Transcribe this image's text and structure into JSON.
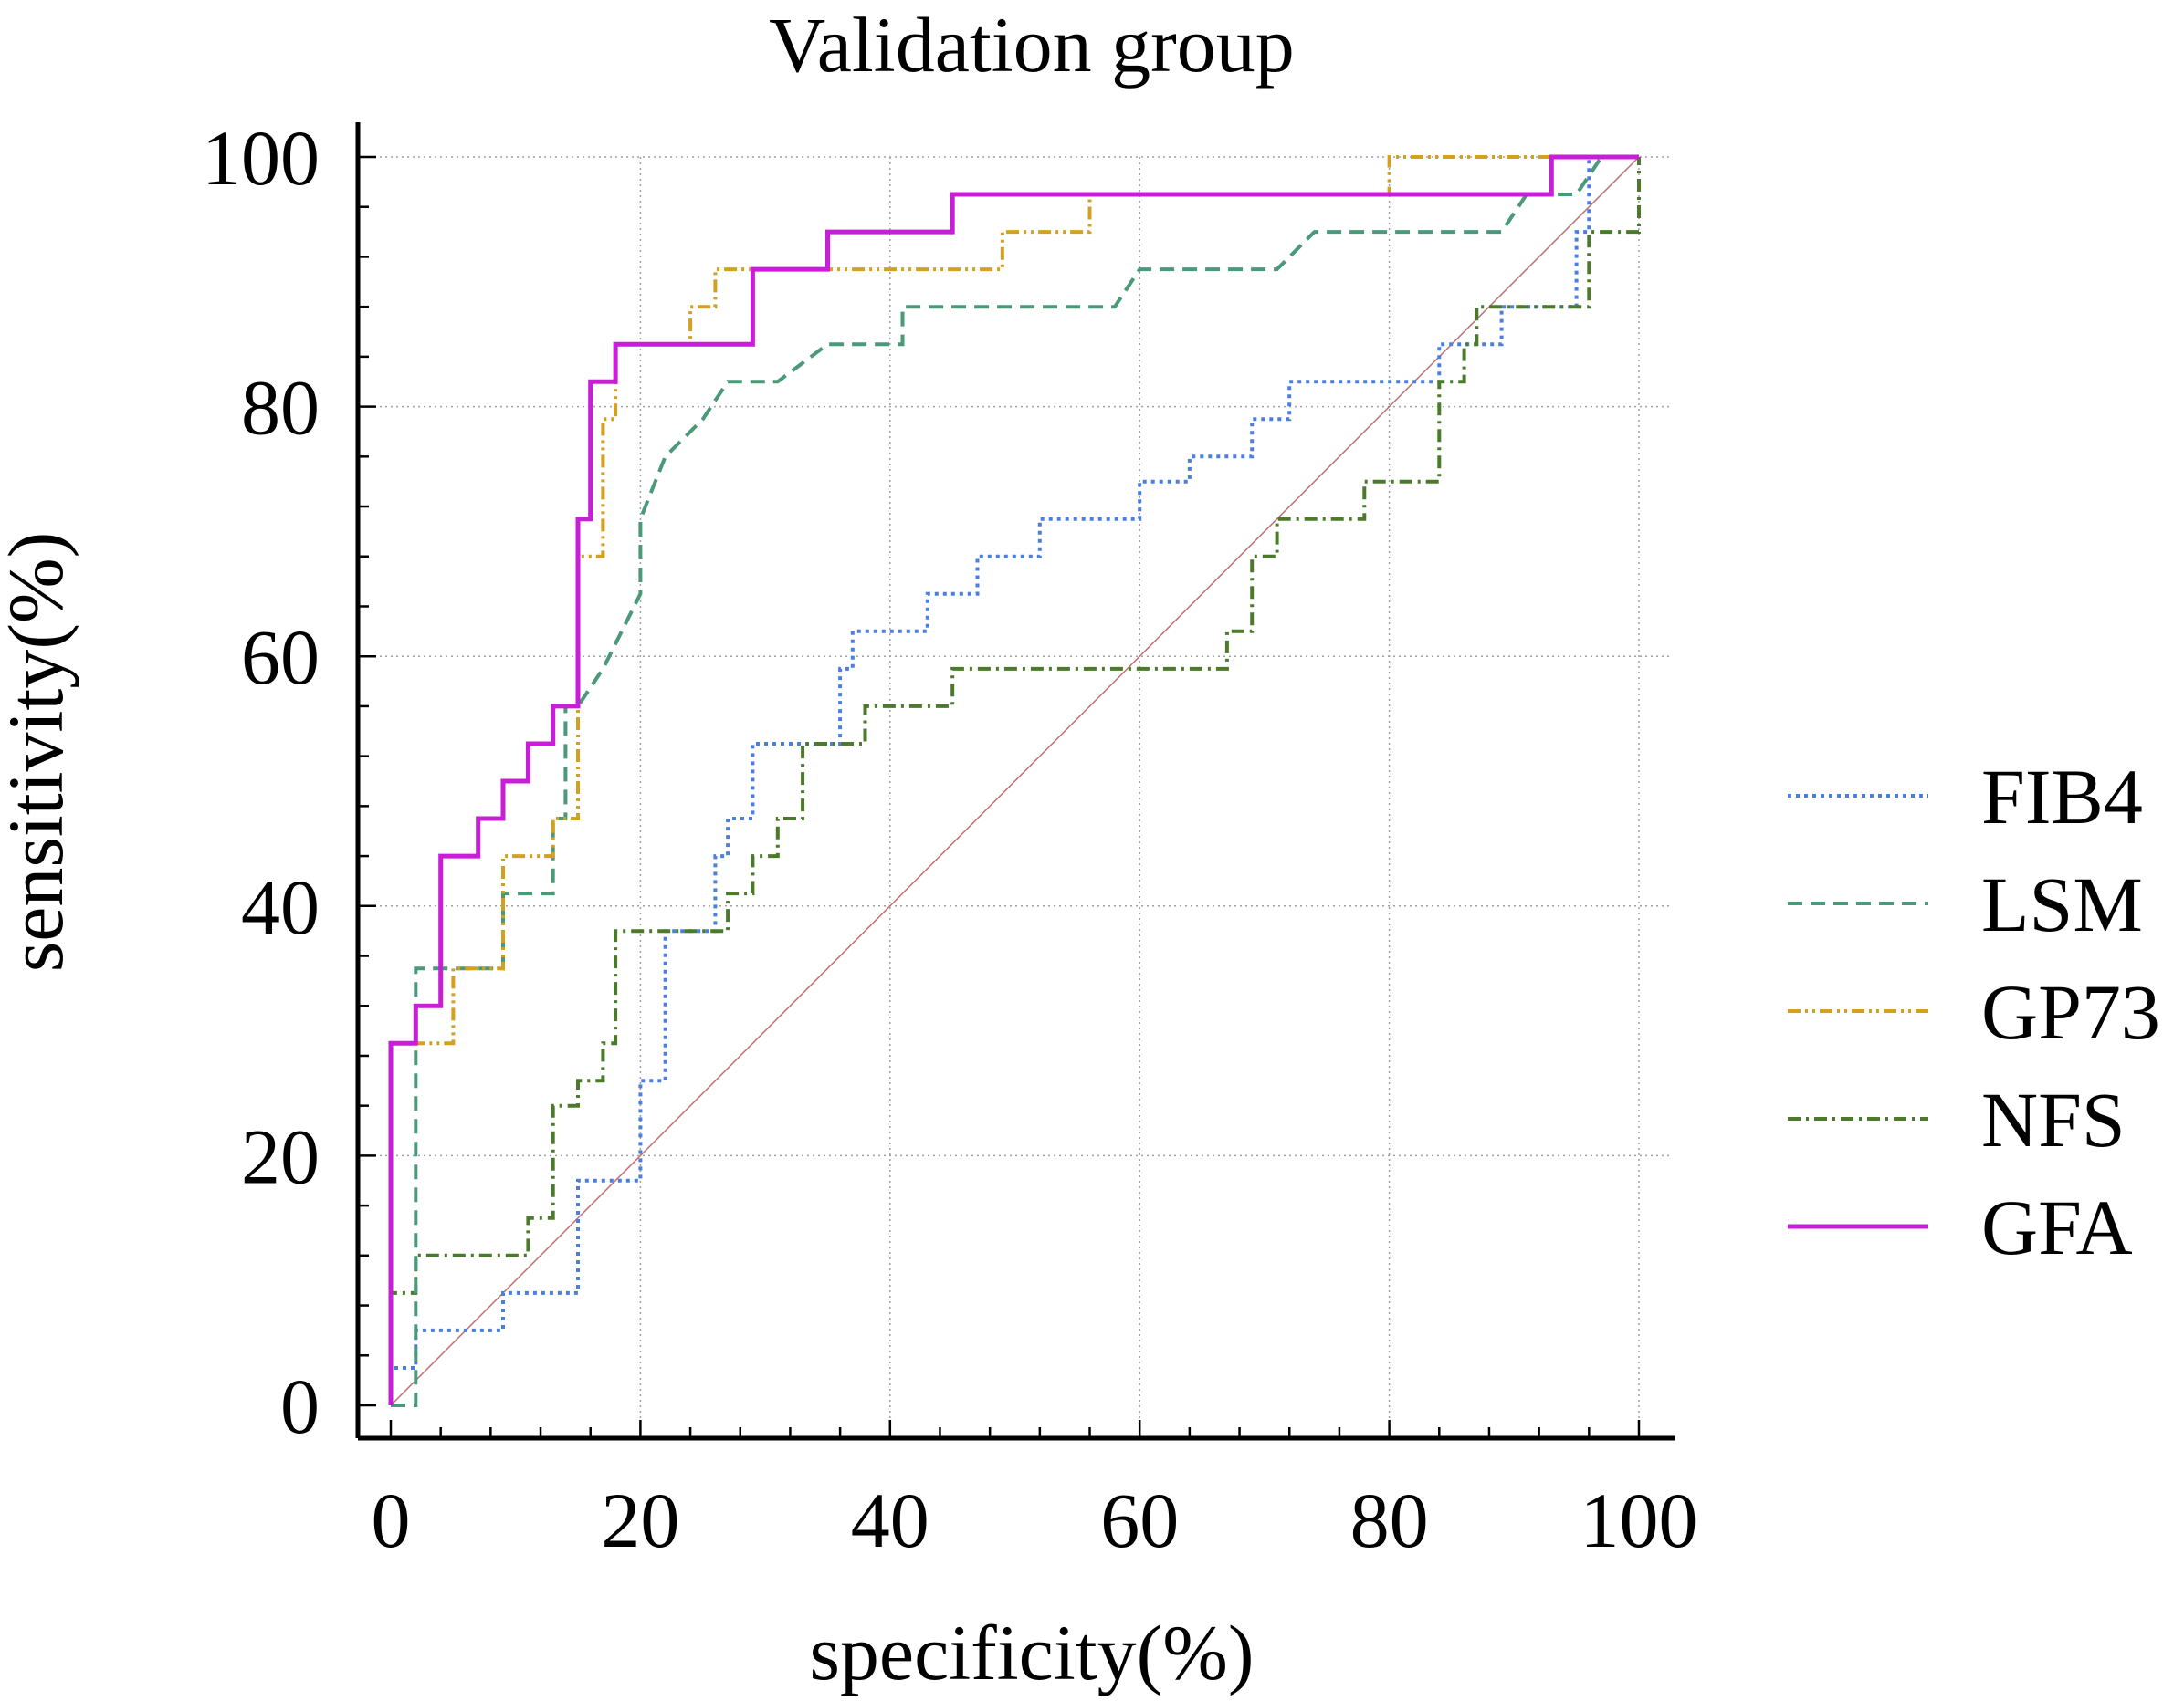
{
  "chart_data": {
    "type": "line",
    "title": "Validation group",
    "xlabel": "specificity(%)",
    "ylabel": "sensitivity(%)",
    "xlim": [
      0,
      100
    ],
    "ylim": [
      0,
      100
    ],
    "xticks": [
      "0",
      "20",
      "40",
      "60",
      "80",
      "100"
    ],
    "yticks": [
      "0",
      "20",
      "40",
      "60",
      "80",
      "100"
    ],
    "grid": true,
    "legend_position": "right",
    "reference_line": {
      "name": "diagonal",
      "color": "#c07070"
    },
    "series": [
      {
        "name": "FIB4",
        "color": "#4a7fe0",
        "dash": "dotted",
        "points": [
          [
            0,
            0
          ],
          [
            0,
            3
          ],
          [
            2,
            3
          ],
          [
            2,
            6
          ],
          [
            9,
            6
          ],
          [
            9,
            9
          ],
          [
            15,
            9
          ],
          [
            15,
            18
          ],
          [
            20,
            18
          ],
          [
            20,
            26
          ],
          [
            22,
            26
          ],
          [
            22,
            38
          ],
          [
            26,
            38
          ],
          [
            26,
            44
          ],
          [
            27,
            44
          ],
          [
            27,
            47
          ],
          [
            29,
            47
          ],
          [
            29,
            53
          ],
          [
            36,
            53
          ],
          [
            36,
            59
          ],
          [
            37,
            59
          ],
          [
            37,
            62
          ],
          [
            43,
            62
          ],
          [
            43,
            65
          ],
          [
            47,
            65
          ],
          [
            47,
            68
          ],
          [
            52,
            68
          ],
          [
            52,
            71
          ],
          [
            60,
            71
          ],
          [
            60,
            74
          ],
          [
            64,
            74
          ],
          [
            64,
            76
          ],
          [
            69,
            76
          ],
          [
            69,
            79
          ],
          [
            72,
            79
          ],
          [
            72,
            82
          ],
          [
            84,
            82
          ],
          [
            84,
            85
          ],
          [
            89,
            85
          ],
          [
            89,
            88
          ],
          [
            95,
            88
          ],
          [
            95,
            94
          ],
          [
            96,
            94
          ],
          [
            96,
            100
          ],
          [
            100,
            100
          ]
        ]
      },
      {
        "name": "LSM",
        "color": "#4a9a7a",
        "dash": "dashed",
        "points": [
          [
            0,
            0
          ],
          [
            2,
            0
          ],
          [
            2,
            29
          ],
          [
            2,
            35
          ],
          [
            9,
            35
          ],
          [
            9,
            41
          ],
          [
            13,
            41
          ],
          [
            13,
            47
          ],
          [
            14,
            47
          ],
          [
            14,
            56
          ],
          [
            15,
            56
          ],
          [
            17,
            59
          ],
          [
            20,
            65
          ],
          [
            20,
            71
          ],
          [
            22,
            76
          ],
          [
            25,
            79
          ],
          [
            27,
            82
          ],
          [
            31,
            82
          ],
          [
            35,
            85
          ],
          [
            41,
            85
          ],
          [
            41,
            88
          ],
          [
            58,
            88
          ],
          [
            60,
            91
          ],
          [
            71,
            91
          ],
          [
            74,
            94
          ],
          [
            89,
            94
          ],
          [
            91,
            97
          ],
          [
            95,
            97
          ],
          [
            97,
            100
          ],
          [
            100,
            100
          ]
        ]
      },
      {
        "name": "GP73",
        "color": "#d4a020",
        "dash": "dashdotdot",
        "points": [
          [
            0,
            0
          ],
          [
            0,
            29
          ],
          [
            5,
            29
          ],
          [
            5,
            35
          ],
          [
            9,
            35
          ],
          [
            9,
            44
          ],
          [
            13,
            44
          ],
          [
            13,
            47
          ],
          [
            15,
            47
          ],
          [
            15,
            56
          ],
          [
            15,
            68
          ],
          [
            17,
            68
          ],
          [
            17,
            79
          ],
          [
            18,
            79
          ],
          [
            18,
            85
          ],
          [
            24,
            85
          ],
          [
            24,
            88
          ],
          [
            26,
            88
          ],
          [
            26,
            91
          ],
          [
            49,
            91
          ],
          [
            49,
            94
          ],
          [
            56,
            94
          ],
          [
            56,
            97
          ],
          [
            80,
            97
          ],
          [
            80,
            100
          ],
          [
            100,
            100
          ]
        ]
      },
      {
        "name": "NFS",
        "color": "#4a7a2a",
        "dash": "dashdot",
        "points": [
          [
            0,
            0
          ],
          [
            0,
            9
          ],
          [
            2,
            9
          ],
          [
            2,
            12
          ],
          [
            11,
            12
          ],
          [
            11,
            15
          ],
          [
            13,
            15
          ],
          [
            13,
            24
          ],
          [
            15,
            24
          ],
          [
            15,
            26
          ],
          [
            17,
            26
          ],
          [
            17,
            29
          ],
          [
            18,
            29
          ],
          [
            18,
            38
          ],
          [
            27,
            38
          ],
          [
            27,
            41
          ],
          [
            29,
            41
          ],
          [
            29,
            44
          ],
          [
            31,
            44
          ],
          [
            31,
            47
          ],
          [
            33,
            47
          ],
          [
            33,
            53
          ],
          [
            38,
            53
          ],
          [
            38,
            56
          ],
          [
            45,
            56
          ],
          [
            45,
            59
          ],
          [
            67,
            59
          ],
          [
            67,
            62
          ],
          [
            69,
            62
          ],
          [
            69,
            68
          ],
          [
            71,
            68
          ],
          [
            71,
            71
          ],
          [
            78,
            71
          ],
          [
            78,
            74
          ],
          [
            84,
            74
          ],
          [
            84,
            82
          ],
          [
            86,
            82
          ],
          [
            86,
            85
          ],
          [
            87,
            85
          ],
          [
            87,
            88
          ],
          [
            96,
            88
          ],
          [
            96,
            94
          ],
          [
            100,
            94
          ],
          [
            100,
            100
          ]
        ]
      },
      {
        "name": "GFA",
        "color": "#c81ed8",
        "dash": "solid",
        "points": [
          [
            0,
            0
          ],
          [
            0,
            29
          ],
          [
            2,
            29
          ],
          [
            2,
            32
          ],
          [
            4,
            32
          ],
          [
            4,
            44
          ],
          [
            7,
            44
          ],
          [
            7,
            47
          ],
          [
            9,
            47
          ],
          [
            9,
            50
          ],
          [
            11,
            50
          ],
          [
            11,
            53
          ],
          [
            13,
            53
          ],
          [
            13,
            56
          ],
          [
            15,
            56
          ],
          [
            15,
            71
          ],
          [
            16,
            71
          ],
          [
            16,
            82
          ],
          [
            18,
            82
          ],
          [
            18,
            85
          ],
          [
            29,
            85
          ],
          [
            29,
            91
          ],
          [
            35,
            91
          ],
          [
            35,
            94
          ],
          [
            45,
            94
          ],
          [
            45,
            97
          ],
          [
            93,
            97
          ],
          [
            93,
            100
          ],
          [
            100,
            100
          ]
        ]
      }
    ]
  }
}
